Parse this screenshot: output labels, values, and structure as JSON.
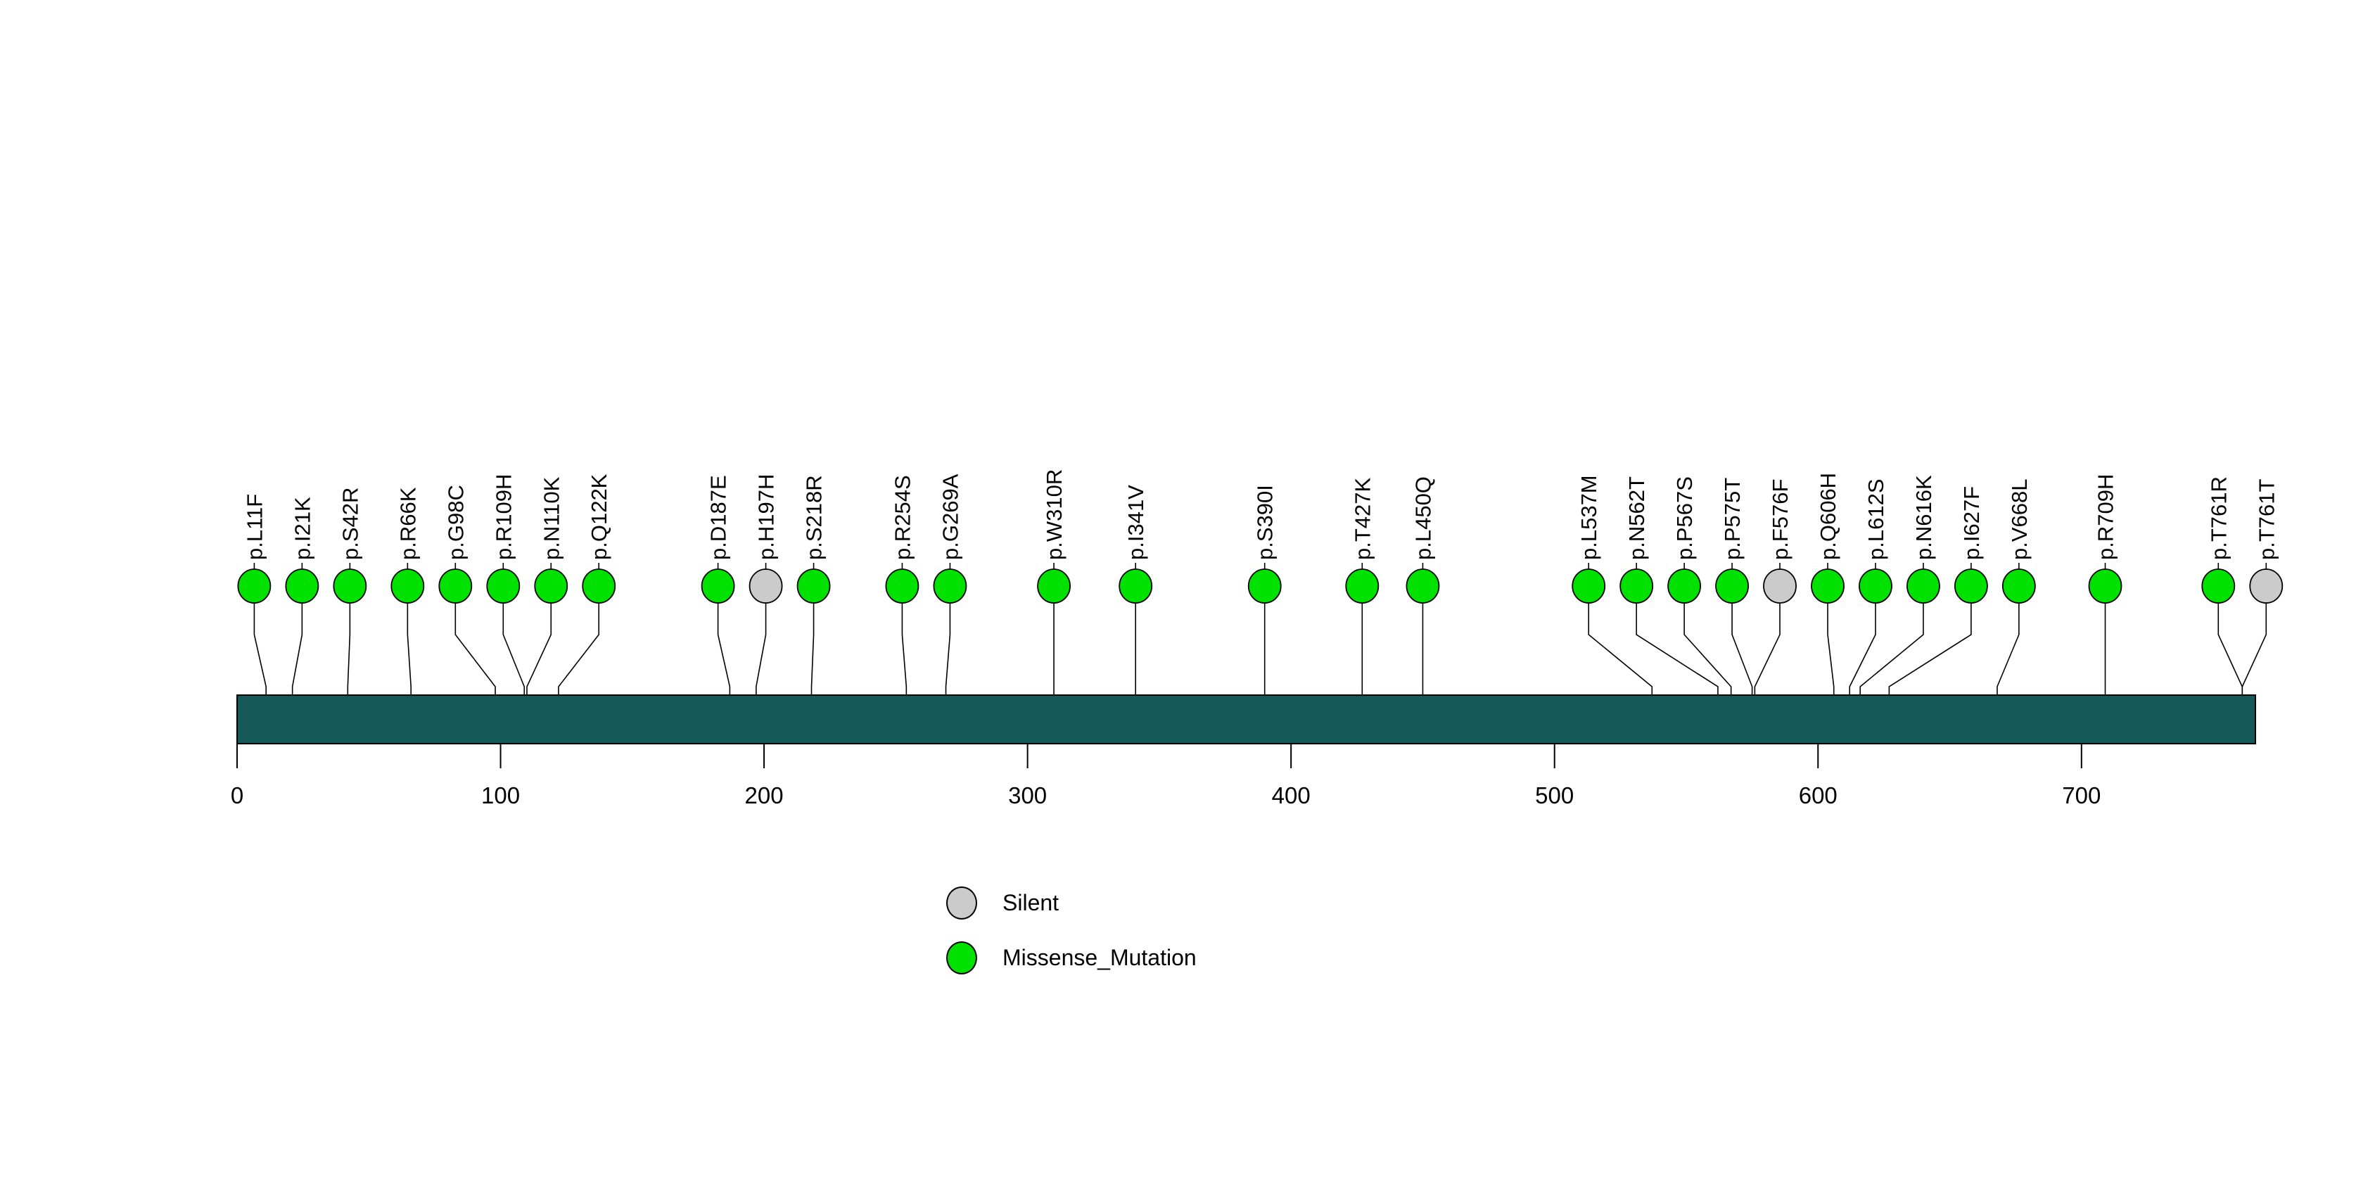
{
  "chart_data": {
    "type": "lollipop",
    "title": "",
    "xlabel": "",
    "ylabel": "",
    "axis": {
      "tick_labels": [
        "0",
        "100",
        "200",
        "300",
        "400",
        "500",
        "600",
        "700"
      ],
      "tick_values": [
        0,
        100,
        200,
        300,
        400,
        500,
        600,
        700
      ],
      "min": 0,
      "max": 766
    },
    "protein_length": 766,
    "backbone_color": "#16595B",
    "legend": [
      {
        "label": "Silent",
        "color": "#CBCBCB"
      },
      {
        "label": "Missense_Mutation",
        "color": "#00E100"
      }
    ],
    "mutations": [
      {
        "label": "p.L11F",
        "position": 11,
        "type": "Missense_Mutation"
      },
      {
        "label": "p.I21K",
        "position": 21,
        "type": "Missense_Mutation"
      },
      {
        "label": "p.S42R",
        "position": 42,
        "type": "Missense_Mutation"
      },
      {
        "label": "p.R66K",
        "position": 66,
        "type": "Missense_Mutation"
      },
      {
        "label": "p.G98C",
        "position": 98,
        "type": "Missense_Mutation"
      },
      {
        "label": "p.R109H",
        "position": 109,
        "type": "Missense_Mutation"
      },
      {
        "label": "p.N110K",
        "position": 110,
        "type": "Missense_Mutation"
      },
      {
        "label": "p.Q122K",
        "position": 122,
        "type": "Missense_Mutation"
      },
      {
        "label": "p.D187E",
        "position": 187,
        "type": "Missense_Mutation"
      },
      {
        "label": "p.H197H",
        "position": 197,
        "type": "Silent"
      },
      {
        "label": "p.S218R",
        "position": 218,
        "type": "Missense_Mutation"
      },
      {
        "label": "p.R254S",
        "position": 254,
        "type": "Missense_Mutation"
      },
      {
        "label": "p.G269A",
        "position": 269,
        "type": "Missense_Mutation"
      },
      {
        "label": "p.W310R",
        "position": 310,
        "type": "Missense_Mutation"
      },
      {
        "label": "p.I341V",
        "position": 341,
        "type": "Missense_Mutation"
      },
      {
        "label": "p.S390I",
        "position": 390,
        "type": "Missense_Mutation"
      },
      {
        "label": "p.T427K",
        "position": 427,
        "type": "Missense_Mutation"
      },
      {
        "label": "p.L450Q",
        "position": 450,
        "type": "Missense_Mutation"
      },
      {
        "label": "p.L537M",
        "position": 537,
        "type": "Missense_Mutation"
      },
      {
        "label": "p.N562T",
        "position": 562,
        "type": "Missense_Mutation"
      },
      {
        "label": "p.P567S",
        "position": 567,
        "type": "Missense_Mutation"
      },
      {
        "label": "p.P575T",
        "position": 575,
        "type": "Missense_Mutation"
      },
      {
        "label": "p.F576F",
        "position": 576,
        "type": "Silent"
      },
      {
        "label": "p.Q606H",
        "position": 606,
        "type": "Missense_Mutation"
      },
      {
        "label": "p.L612S",
        "position": 612,
        "type": "Missense_Mutation"
      },
      {
        "label": "p.N616K",
        "position": 616,
        "type": "Missense_Mutation"
      },
      {
        "label": "p.I627F",
        "position": 627,
        "type": "Missense_Mutation"
      },
      {
        "label": "p.V668L",
        "position": 668,
        "type": "Missense_Mutation"
      },
      {
        "label": "p.R709H",
        "position": 709,
        "type": "Missense_Mutation"
      },
      {
        "label": "p.T761R",
        "position": 761,
        "type": "Missense_Mutation"
      },
      {
        "label": "p.T761T",
        "position": 761,
        "type": "Silent"
      }
    ]
  }
}
